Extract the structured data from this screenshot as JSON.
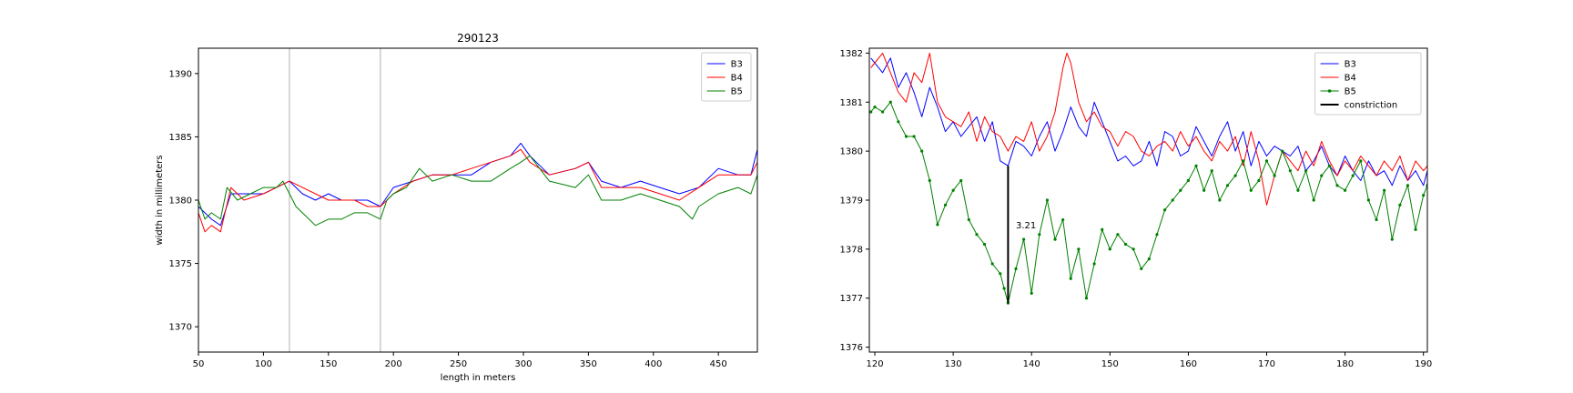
{
  "chart_data": [
    {
      "type": "line",
      "title": "290123",
      "xlabel": "length in meters",
      "ylabel": "width in millimeters",
      "xlim": [
        50,
        480
      ],
      "ylim": [
        1368,
        1392
      ],
      "xticks": [
        50,
        100,
        150,
        200,
        250,
        300,
        350,
        400,
        450
      ],
      "yticks": [
        1370,
        1375,
        1380,
        1385,
        1390
      ],
      "grid": false,
      "legend_position": "top-right",
      "vlines": [
        120,
        190
      ],
      "series": [
        {
          "name": "B3",
          "color": "#0000ff",
          "x": [
            50,
            60,
            67,
            75,
            85,
            100,
            110,
            120,
            130,
            140,
            150,
            160,
            170,
            180,
            190,
            200,
            215,
            230,
            245,
            260,
            275,
            290,
            298,
            305,
            320,
            340,
            350,
            360,
            375,
            390,
            405,
            420,
            435,
            450,
            465,
            475,
            480
          ],
          "y": [
            1379.5,
            1378.5,
            1378.0,
            1380.5,
            1380.5,
            1380.5,
            1381.0,
            1381.5,
            1380.5,
            1380.0,
            1380.5,
            1380.0,
            1380.0,
            1380.0,
            1379.5,
            1381.0,
            1381.5,
            1382.0,
            1382.0,
            1382.0,
            1383.0,
            1383.5,
            1384.5,
            1383.5,
            1382.0,
            1382.5,
            1383.0,
            1381.5,
            1381.0,
            1381.5,
            1381.0,
            1380.5,
            1381.0,
            1382.5,
            1382.0,
            1382.0,
            1384.0
          ]
        },
        {
          "name": "B4",
          "color": "#ff0000",
          "x": [
            50,
            55,
            60,
            67,
            75,
            85,
            100,
            110,
            120,
            130,
            140,
            150,
            160,
            170,
            180,
            190,
            200,
            215,
            230,
            245,
            260,
            275,
            290,
            298,
            305,
            320,
            340,
            350,
            360,
            375,
            390,
            405,
            420,
            435,
            450,
            465,
            475,
            480
          ],
          "y": [
            1379.0,
            1377.5,
            1378.0,
            1377.5,
            1381.0,
            1380.0,
            1380.5,
            1381.0,
            1381.5,
            1381.0,
            1380.5,
            1380.0,
            1380.0,
            1380.0,
            1379.5,
            1379.5,
            1380.5,
            1381.5,
            1382.0,
            1382.0,
            1382.5,
            1383.0,
            1383.5,
            1384.0,
            1383.0,
            1382.0,
            1382.5,
            1383.0,
            1381.0,
            1381.0,
            1381.0,
            1380.5,
            1380.0,
            1381.0,
            1382.0,
            1382.0,
            1382.0,
            1383.0
          ]
        },
        {
          "name": "B5",
          "color": "#008000",
          "x": [
            50,
            55,
            60,
            67,
            72,
            80,
            90,
            100,
            110,
            115,
            120,
            125,
            130,
            140,
            150,
            160,
            170,
            180,
            190,
            195,
            200,
            210,
            220,
            230,
            245,
            260,
            275,
            290,
            298,
            305,
            320,
            340,
            350,
            360,
            375,
            390,
            405,
            420,
            430,
            435,
            450,
            465,
            475,
            480
          ],
          "y": [
            1380.0,
            1378.5,
            1379.0,
            1378.5,
            1381.0,
            1380.0,
            1380.5,
            1381.0,
            1381.0,
            1381.5,
            1380.5,
            1379.5,
            1379.0,
            1378.0,
            1378.5,
            1378.5,
            1379.0,
            1379.0,
            1378.5,
            1380.0,
            1380.5,
            1381.0,
            1382.5,
            1381.5,
            1382.0,
            1381.5,
            1381.5,
            1382.5,
            1383.0,
            1383.5,
            1381.5,
            1381.0,
            1382.0,
            1380.0,
            1380.0,
            1380.5,
            1380.0,
            1379.5,
            1378.5,
            1379.5,
            1380.5,
            1381.0,
            1380.5,
            1382.0
          ]
        }
      ],
      "legend": [
        {
          "label": "B3",
          "color": "#0000ff"
        },
        {
          "label": "B4",
          "color": "#ff0000"
        },
        {
          "label": "B5",
          "color": "#008000"
        }
      ]
    },
    {
      "type": "line",
      "title": "",
      "xlabel": "",
      "ylabel": "",
      "xlim": [
        119.3,
        190.5
      ],
      "ylim": [
        1375.9,
        1382.1
      ],
      "xticks": [
        120,
        130,
        140,
        150,
        160,
        170,
        180,
        190
      ],
      "yticks": [
        1376,
        1377,
        1378,
        1379,
        1380,
        1381,
        1382
      ],
      "grid": false,
      "legend_position": "top-right",
      "series": [
        {
          "name": "B3",
          "color": "#0000ff",
          "x": [
            119.5,
            121,
            122,
            123,
            124,
            125,
            126,
            127,
            128,
            129,
            130,
            131,
            132,
            133,
            134,
            135,
            136,
            137,
            138,
            139,
            140,
            141,
            142,
            143,
            144,
            145,
            146,
            147,
            148,
            149,
            150,
            151,
            152,
            153,
            154,
            155,
            156,
            157,
            158,
            159,
            160,
            161,
            162,
            163,
            164,
            165,
            166,
            167,
            168,
            169,
            170,
            171,
            172,
            173,
            174,
            175,
            176,
            177,
            178,
            179,
            180,
            181,
            182,
            183,
            184,
            185,
            186,
            187,
            188,
            189,
            190,
            190.5
          ],
          "y": [
            1381.9,
            1381.6,
            1381.9,
            1381.3,
            1381.6,
            1381.2,
            1380.7,
            1381.3,
            1380.9,
            1380.4,
            1380.6,
            1380.3,
            1380.5,
            1380.7,
            1380.2,
            1380.6,
            1379.8,
            1379.7,
            1380.2,
            1380.1,
            1379.9,
            1380.3,
            1380.6,
            1380.0,
            1380.4,
            1380.9,
            1380.5,
            1380.3,
            1381.0,
            1380.6,
            1380.2,
            1379.8,
            1379.9,
            1379.7,
            1379.8,
            1380.2,
            1379.7,
            1380.4,
            1380.3,
            1379.9,
            1380.0,
            1380.5,
            1380.2,
            1379.9,
            1380.3,
            1380.6,
            1380.0,
            1380.4,
            1379.7,
            1380.2,
            1379.9,
            1380.1,
            1380.0,
            1379.9,
            1380.1,
            1379.6,
            1379.8,
            1380.1,
            1379.7,
            1379.5,
            1379.9,
            1379.6,
            1379.4,
            1379.8,
            1379.5,
            1379.6,
            1379.3,
            1379.7,
            1379.4,
            1379.6,
            1379.3,
            1379.6
          ]
        },
        {
          "name": "B4",
          "color": "#ff0000",
          "x": [
            119.5,
            121,
            122,
            123,
            124,
            125,
            126,
            127,
            128,
            129,
            130,
            131,
            132,
            133,
            134,
            135,
            136,
            137,
            138,
            139,
            140,
            141,
            142,
            143,
            144,
            144.5,
            145,
            146,
            147,
            148,
            149,
            150,
            151,
            152,
            153,
            154,
            155,
            156,
            157,
            158,
            159,
            160,
            161,
            162,
            163,
            164,
            165,
            166,
            167,
            168,
            169,
            170,
            171,
            172,
            173,
            174,
            175,
            176,
            177,
            178,
            179,
            180,
            181,
            182,
            183,
            184,
            185,
            186,
            187,
            188,
            189,
            190,
            190.5
          ],
          "y": [
            1381.7,
            1382.0,
            1381.6,
            1381.2,
            1381.0,
            1381.6,
            1381.4,
            1382.0,
            1381.0,
            1380.7,
            1380.6,
            1380.5,
            1380.8,
            1380.2,
            1380.7,
            1380.4,
            1380.3,
            1380.0,
            1380.3,
            1380.2,
            1380.6,
            1380.0,
            1380.3,
            1380.8,
            1381.7,
            1382.0,
            1381.8,
            1381.0,
            1380.6,
            1380.8,
            1380.5,
            1380.4,
            1380.1,
            1380.4,
            1380.3,
            1380.0,
            1379.9,
            1380.1,
            1380.2,
            1380.0,
            1380.4,
            1380.1,
            1380.3,
            1380.0,
            1379.8,
            1380.2,
            1380.0,
            1380.3,
            1379.7,
            1380.4,
            1379.8,
            1378.9,
            1379.5,
            1380.0,
            1379.8,
            1379.6,
            1380.0,
            1379.7,
            1380.2,
            1379.8,
            1379.5,
            1379.8,
            1379.6,
            1379.9,
            1379.7,
            1379.5,
            1379.8,
            1379.6,
            1379.9,
            1379.4,
            1379.8,
            1379.6,
            1379.7
          ]
        },
        {
          "name": "B5",
          "color": "#008000",
          "markers": true,
          "x": [
            119.5,
            120,
            121,
            122,
            123,
            124,
            125,
            126,
            127,
            128,
            129,
            130,
            131,
            132,
            133,
            134,
            135,
            136,
            136.5,
            137,
            138,
            139,
            140,
            141,
            142,
            143,
            144,
            145,
            146,
            147,
            148,
            149,
            150,
            151,
            152,
            153,
            154,
            155,
            156,
            157,
            158,
            159,
            160,
            161,
            162,
            163,
            164,
            165,
            166,
            167,
            168,
            169,
            170,
            171,
            172,
            173,
            174,
            175,
            176,
            177,
            178,
            179,
            180,
            181,
            182,
            183,
            184,
            185,
            186,
            187,
            188,
            189,
            190,
            190.5
          ],
          "y": [
            1380.8,
            1380.9,
            1380.8,
            1381.0,
            1380.6,
            1380.3,
            1380.3,
            1380.0,
            1379.4,
            1378.5,
            1378.9,
            1379.2,
            1379.4,
            1378.6,
            1378.3,
            1378.1,
            1377.7,
            1377.5,
            1377.2,
            1376.9,
            1377.6,
            1378.2,
            1377.1,
            1378.3,
            1379.0,
            1378.2,
            1378.6,
            1377.4,
            1378.0,
            1377.0,
            1377.7,
            1378.4,
            1378.0,
            1378.3,
            1378.1,
            1378.0,
            1377.6,
            1377.8,
            1378.3,
            1378.8,
            1379.0,
            1379.2,
            1379.4,
            1379.7,
            1379.2,
            1379.6,
            1379.0,
            1379.3,
            1379.5,
            1379.8,
            1379.2,
            1379.4,
            1379.8,
            1379.5,
            1380.0,
            1379.6,
            1379.2,
            1379.6,
            1379.0,
            1379.5,
            1379.7,
            1379.3,
            1379.2,
            1379.5,
            1379.8,
            1379.0,
            1378.6,
            1379.2,
            1378.2,
            1378.9,
            1379.3,
            1378.4,
            1379.1,
            1379.3
          ]
        },
        {
          "name": "constriction",
          "color": "#000000",
          "type": "vline",
          "x": [
            137,
            137
          ],
          "y": [
            1376.9,
            1379.7
          ]
        }
      ],
      "annotations": [
        {
          "text": "3.21",
          "x": 138,
          "y": 1378.5
        }
      ],
      "legend": [
        {
          "label": "B3",
          "color": "#0000ff",
          "marker": false
        },
        {
          "label": "B4",
          "color": "#ff0000",
          "marker": false
        },
        {
          "label": "B5",
          "color": "#008000",
          "marker": true
        },
        {
          "label": "constriction",
          "color": "#000000",
          "marker": false
        }
      ]
    }
  ]
}
